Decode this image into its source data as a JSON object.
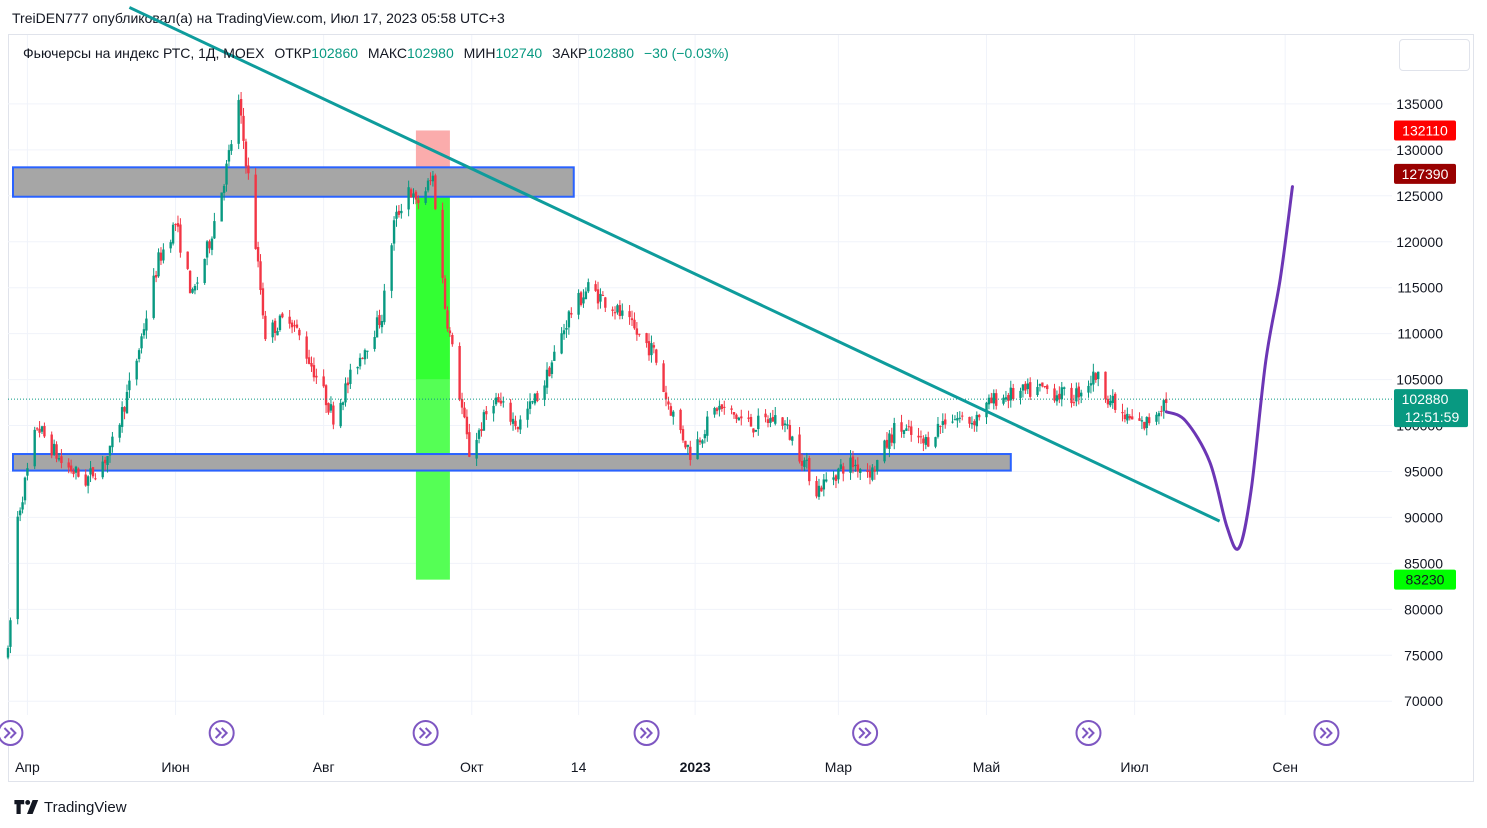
{
  "header": {
    "publication": "TreiDEN777 опубликовал(а) на TradingView.com, Июл 17, 2023 05:58 UTC+3"
  },
  "legend": {
    "instrument": "Фьючерсы на индекс РТС, 1Д, MOEX",
    "open_label": "ОТКР",
    "open_value": "102860",
    "high_label": "МАКС",
    "high_value": "102980",
    "low_label": "МИН",
    "low_value": "102740",
    "close_label": "ЗАКР",
    "close_value": "102880",
    "change": "−30 (−0.03%)"
  },
  "footer": {
    "brand": "TradingView"
  },
  "colors": {
    "up": "#089981",
    "down": "#f23645",
    "trendline": "#0e9c9c",
    "forecast": "#6c36b5",
    "zone_fill": "#a6a6a6",
    "zone_border": "#2962ff",
    "stop_zone": "#fa9e9e",
    "target_zone_dark": "#33ff33",
    "target_zone_light": "#55ff55",
    "event_icon": "#7e57c2"
  },
  "chart_data": {
    "type": "candlestick",
    "timeframe": "1Д",
    "x_range": [
      "2022-03-24",
      "2023-10-15"
    ],
    "y_range": [
      68500,
      142500
    ],
    "y_ticks": [
      70000,
      75000,
      80000,
      85000,
      90000,
      95000,
      100000,
      105000,
      110000,
      115000,
      120000,
      125000,
      130000,
      135000
    ],
    "x_ticks": [
      {
        "date": "2022-04-01",
        "label": "Апр",
        "bold": false
      },
      {
        "date": "2022-06-01",
        "label": "Июн",
        "bold": false
      },
      {
        "date": "2022-08-01",
        "label": "Авг",
        "bold": false
      },
      {
        "date": "2022-10-01",
        "label": "Окт",
        "bold": false
      },
      {
        "date": "2022-11-14",
        "label": "14",
        "bold": false
      },
      {
        "date": "2023-01-01",
        "label": "2023",
        "bold": true
      },
      {
        "date": "2023-03-01",
        "label": "Мар",
        "bold": false
      },
      {
        "date": "2023-05-01",
        "label": "Май",
        "bold": false
      },
      {
        "date": "2023-07-01",
        "label": "Июл",
        "bold": false
      },
      {
        "date": "2023-09-01",
        "label": "Сен",
        "bold": false
      }
    ],
    "price_path": [
      [
        "2022-03-24",
        75000
      ],
      [
        "2022-03-28",
        90000
      ],
      [
        "2022-04-05",
        100000
      ],
      [
        "2022-04-15",
        96000
      ],
      [
        "2022-04-25",
        94000
      ],
      [
        "2022-05-05",
        97000
      ],
      [
        "2022-05-15",
        106000
      ],
      [
        "2022-05-25",
        118000
      ],
      [
        "2022-06-01",
        122000
      ],
      [
        "2022-06-08",
        114000
      ],
      [
        "2022-06-15",
        120000
      ],
      [
        "2022-06-22",
        128000
      ],
      [
        "2022-06-27",
        135000
      ],
      [
        "2022-07-01",
        127000
      ],
      [
        "2022-07-08",
        110000
      ],
      [
        "2022-07-18",
        112000
      ],
      [
        "2022-07-28",
        106000
      ],
      [
        "2022-08-05",
        101000
      ],
      [
        "2022-08-15",
        107000
      ],
      [
        "2022-08-25",
        112000
      ],
      [
        "2022-08-30",
        122000
      ],
      [
        "2022-09-05",
        126000
      ],
      [
        "2022-09-08",
        124000
      ],
      [
        "2022-09-15",
        127000
      ],
      [
        "2022-09-20",
        113000
      ],
      [
        "2022-09-25",
        105000
      ],
      [
        "2022-09-30",
        97000
      ],
      [
        "2022-10-10",
        103000
      ],
      [
        "2022-10-20",
        100000
      ],
      [
        "2022-10-30",
        104000
      ],
      [
        "2022-11-10",
        112000
      ],
      [
        "2022-11-18",
        115000
      ],
      [
        "2022-11-28",
        113000
      ],
      [
        "2022-12-08",
        110000
      ],
      [
        "2022-12-15",
        108000
      ],
      [
        "2022-12-20",
        103000
      ],
      [
        "2022-12-30",
        97000
      ],
      [
        "2023-01-10",
        102000
      ],
      [
        "2023-01-25",
        100000
      ],
      [
        "2023-02-05",
        101000
      ],
      [
        "2023-02-15",
        96000
      ],
      [
        "2023-02-20",
        93000
      ],
      [
        "2023-03-05",
        96000
      ],
      [
        "2023-03-15",
        95000
      ],
      [
        "2023-03-25",
        100000
      ],
      [
        "2023-04-05",
        98000
      ],
      [
        "2023-04-15",
        101000
      ],
      [
        "2023-04-25",
        100500
      ],
      [
        "2023-05-05",
        103000
      ],
      [
        "2023-05-15",
        103500
      ],
      [
        "2023-05-25",
        104000
      ],
      [
        "2023-06-05",
        103000
      ],
      [
        "2023-06-15",
        105500
      ],
      [
        "2023-06-25",
        101000
      ],
      [
        "2023-07-05",
        100000
      ],
      [
        "2023-07-14",
        102880
      ]
    ],
    "horizontal_zones": [
      {
        "from": "2022-03-24",
        "to": "2022-11-12",
        "top": 128100,
        "bottom": 124900
      },
      {
        "from": "2022-03-24",
        "to": "2023-05-11",
        "top": 96900,
        "bottom": 95100
      }
    ],
    "trendline": [
      [
        "2022-05-13",
        145500
      ],
      [
        "2023-08-05",
        89600
      ]
    ],
    "position_tool": {
      "from": "2022-09-08",
      "to": "2022-09-22",
      "entry": 127390,
      "stop": 132110,
      "target": 83230,
      "mid_shade": 105000
    },
    "forecast_path": [
      [
        "2023-07-14",
        101500
      ],
      [
        "2023-07-22",
        100500
      ],
      [
        "2023-08-01",
        96000
      ],
      [
        "2023-08-08",
        89000
      ],
      [
        "2023-08-13",
        86700
      ],
      [
        "2023-08-18",
        93000
      ],
      [
        "2023-08-24",
        107000
      ],
      [
        "2023-08-30",
        116000
      ],
      [
        "2023-09-04",
        126000
      ]
    ],
    "price_labels": [
      {
        "value": 132110,
        "text": "132110",
        "bg": "#ff0000",
        "fg": "#ffffff"
      },
      {
        "value": 127390,
        "text": "127390",
        "bg": "#990000",
        "fg": "#ffffff"
      },
      {
        "value": 102880,
        "text": "102880",
        "sub": "12:51:59",
        "bg": "#089981",
        "fg": "#ffffff"
      },
      {
        "value": 83230,
        "text": "83230",
        "bg": "#00ff00",
        "fg": "#131722"
      }
    ],
    "event_markers": [
      "2022-03-25",
      "2022-06-20",
      "2022-09-12",
      "2022-12-12",
      "2023-03-12",
      "2023-06-12",
      "2023-09-18"
    ]
  }
}
